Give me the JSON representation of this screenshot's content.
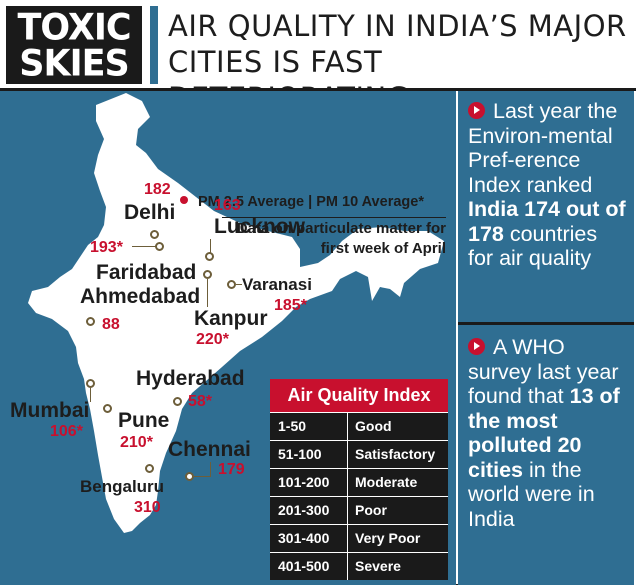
{
  "header": {
    "logo_line1": "TOXIC",
    "logo_line2": "SKIES",
    "headline": "AIR QUALITY IN INDIA’S MAJOR CITIES IS FAST DETERIORATING"
  },
  "legend": {
    "key": "PM 2.5 Average | PM 10 Average*",
    "description": "Data on particulate matter for first week of April"
  },
  "cities": [
    {
      "name": "Delhi",
      "value": "182"
    },
    {
      "name": "Faridabad",
      "value": "193*"
    },
    {
      "name": "Lucknow",
      "value": "163"
    },
    {
      "name": "Varanasi",
      "value": "185*"
    },
    {
      "name": "Ahmedabad",
      "value": "88"
    },
    {
      "name": "Kanpur",
      "value": "220*"
    },
    {
      "name": "Hyderabad",
      "value": "58*"
    },
    {
      "name": "Mumbai",
      "value": "106*"
    },
    {
      "name": "Pune",
      "value": "210*"
    },
    {
      "name": "Chennai",
      "value": "179"
    },
    {
      "name": "Bengaluru",
      "value": "310"
    }
  ],
  "aqi": {
    "title": "Air Quality Index",
    "rows": [
      {
        "range": "1-50",
        "category": "Good"
      },
      {
        "range": "51-100",
        "category": "Satisfactory"
      },
      {
        "range": "101-200",
        "category": "Moderate"
      },
      {
        "range": "201-300",
        "category": "Poor"
      },
      {
        "range": "301-400",
        "category": "Very Poor"
      },
      {
        "range": "401-500",
        "category": "Severe"
      }
    ]
  },
  "side": {
    "block1": {
      "text1": "Last year the Environ-mental Pref-erence Index ranked ",
      "bold1": "India 174 out of 178",
      "text2": " countries for air quality"
    },
    "block2": {
      "text1": "A WHO survey last year found that ",
      "bold1": "13 of the most polluted 20 cities",
      "text2": " in the world were in India"
    }
  },
  "colors": {
    "panel_blue": "#2f6e92",
    "map_fill": "#ffffff",
    "accent_red": "#c8102e",
    "dark": "#1a1a1a"
  }
}
